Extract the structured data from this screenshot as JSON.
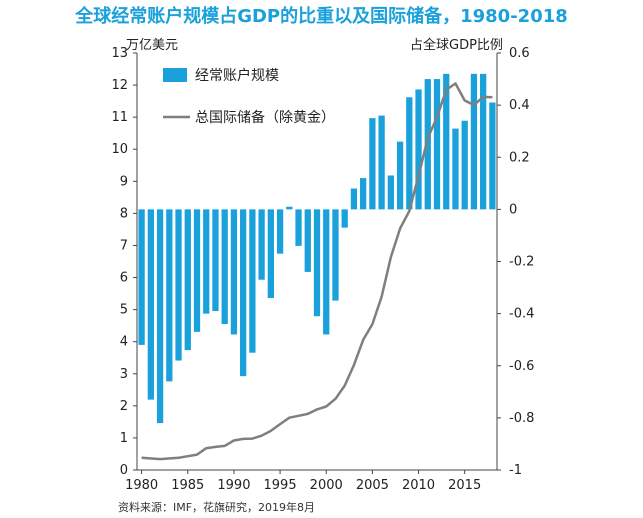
{
  "chart_data": {
    "type": "bar",
    "title": "全球经常账户规模占GDP的比重以及国际储备，1980-2018",
    "ylabel_left": "万亿美元",
    "ylabel_right": "占全球GDP比例",
    "source": "资料来源：IMF，花旗研究，2019年8月",
    "legend_position": "top-left",
    "xlim": [
      1980,
      2018
    ],
    "ylim_left": [
      0,
      13
    ],
    "ylim_right": [
      -1,
      0.6
    ],
    "x_ticks": [
      "1980",
      "1985",
      "1990",
      "1995",
      "2000",
      "2005",
      "2010",
      "2015"
    ],
    "y_ticks_left": [
      "0",
      "1",
      "2",
      "3",
      "4",
      "5",
      "6",
      "7",
      "8",
      "9",
      "10",
      "11",
      "12",
      "13"
    ],
    "y_ticks_right": [
      "-1",
      "-0.8",
      "-0.6",
      "-0.4",
      "-0.2",
      "0",
      "0.2",
      "0.4",
      "0.6"
    ],
    "series": [
      {
        "name": "经常账户规模",
        "kind": "bar",
        "axis": "right",
        "color": "#1aa1db",
        "x": [
          1980,
          1981,
          1982,
          1983,
          1984,
          1985,
          1986,
          1987,
          1988,
          1989,
          1990,
          1991,
          1992,
          1993,
          1994,
          1995,
          1996,
          1997,
          1998,
          1999,
          2000,
          2001,
          2002,
          2003,
          2004,
          2005,
          2006,
          2007,
          2008,
          2009,
          2010,
          2011,
          2012,
          2013,
          2014,
          2015,
          2016,
          2017,
          2018
        ],
        "values": [
          -0.52,
          -0.73,
          -0.82,
          -0.66,
          -0.58,
          -0.54,
          -0.47,
          -0.4,
          -0.39,
          -0.44,
          -0.48,
          -0.64,
          -0.55,
          -0.27,
          -0.34,
          -0.17,
          0.01,
          -0.14,
          -0.24,
          -0.41,
          -0.48,
          -0.35,
          -0.07,
          0.08,
          0.12,
          0.35,
          0.36,
          0.13,
          0.26,
          0.43,
          0.46,
          0.5,
          0.5,
          0.52,
          0.31,
          0.34,
          0.52,
          0.52,
          0.41
        ]
      },
      {
        "name": "总国际储备（除黄金）",
        "kind": "line",
        "axis": "left",
        "color": "#7f7f7f",
        "x": [
          1980,
          1982,
          1984,
          1986,
          1987,
          1988,
          1989,
          1990,
          1991,
          1992,
          1993,
          1994,
          1995,
          1996,
          1997,
          1998,
          1999,
          2000,
          2001,
          2002,
          2003,
          2004,
          2005,
          2006,
          2007,
          2008,
          2009,
          2010,
          2011,
          2012,
          2013,
          2014,
          2015,
          2016,
          2017,
          2018
        ],
        "values": [
          0.38,
          0.34,
          0.38,
          0.48,
          0.68,
          0.72,
          0.75,
          0.92,
          0.97,
          0.98,
          1.07,
          1.22,
          1.43,
          1.63,
          1.69,
          1.75,
          1.89,
          1.98,
          2.22,
          2.63,
          3.27,
          4.06,
          4.55,
          5.4,
          6.63,
          7.53,
          8.07,
          9.17,
          10.35,
          11.0,
          11.85,
          12.05,
          11.52,
          11.38,
          11.63,
          11.62
        ]
      }
    ]
  }
}
